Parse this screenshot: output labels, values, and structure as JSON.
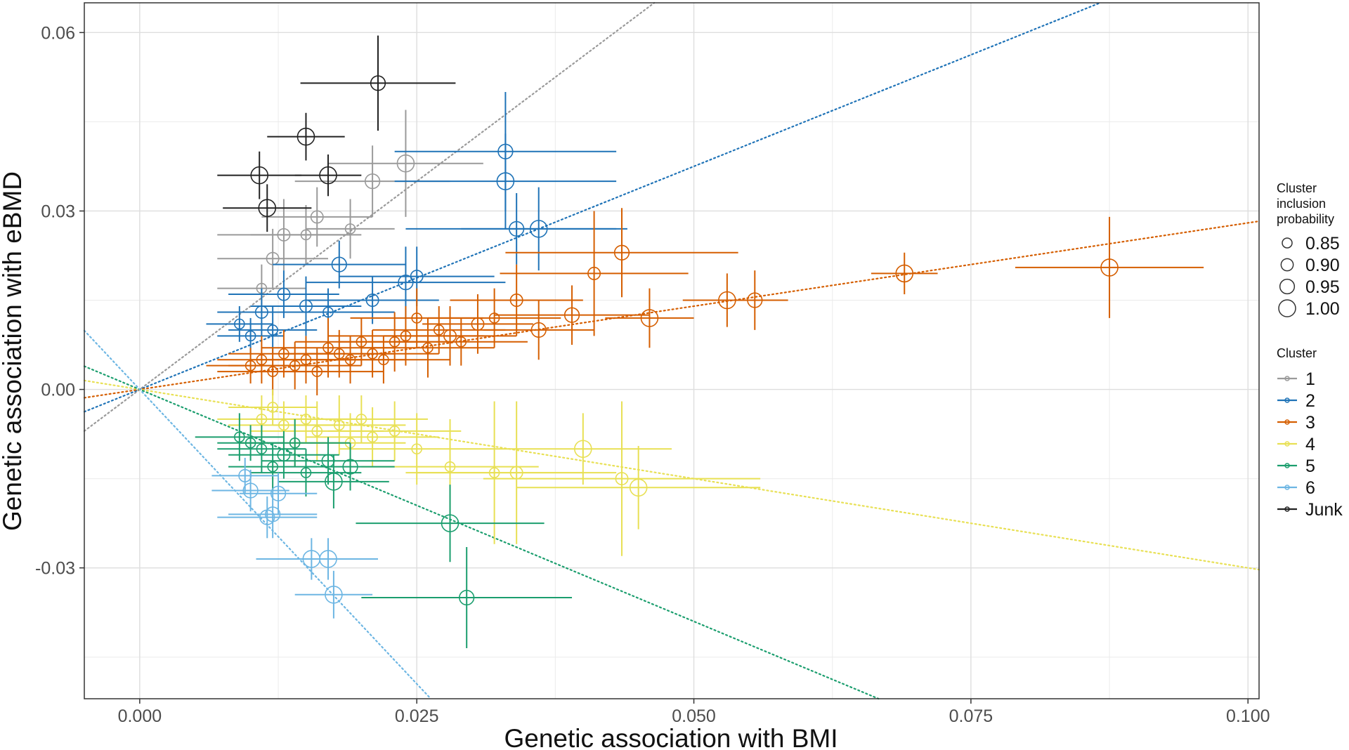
{
  "chart_data": {
    "type": "scatter",
    "title": "",
    "xlabel": "Genetic association with BMI",
    "ylabel": "Genetic association with eBMD",
    "xlim": [
      -0.005,
      0.101
    ],
    "ylim": [
      -0.052,
      0.065
    ],
    "x_ticks": [
      0.0,
      0.025,
      0.05,
      0.075,
      0.1
    ],
    "x_tick_labels": [
      "0.000",
      "0.025",
      "0.050",
      "0.075",
      "0.100"
    ],
    "y_ticks": [
      -0.03,
      0.0,
      0.03,
      0.06
    ],
    "y_tick_labels": [
      "-0.03",
      "0.00",
      "0.03",
      "0.06"
    ],
    "grid": true,
    "legend_placement": "right",
    "size_legend": {
      "title_lines": [
        "Cluster",
        "inclusion",
        "probability"
      ],
      "items": [
        {
          "label": "0.85",
          "value": 0.85
        },
        {
          "label": "0.90",
          "value": 0.9
        },
        {
          "label": "0.95",
          "value": 0.95
        },
        {
          "label": "1.00",
          "value": 1.0
        }
      ]
    },
    "cluster_legend": {
      "title": "Cluster",
      "items": [
        {
          "label": "1",
          "color": "#9a9a9a"
        },
        {
          "label": "2",
          "color": "#1f73b7"
        },
        {
          "label": "3",
          "color": "#d55e00"
        },
        {
          "label": "4",
          "color": "#e8e054"
        },
        {
          "label": "5",
          "color": "#1b9e6e"
        },
        {
          "label": "6",
          "color": "#6db6e3"
        },
        {
          "label": "Junk",
          "color": "#222222"
        }
      ]
    },
    "series": [
      {
        "name": "1",
        "color": "#9a9a9a",
        "slope": 1.4,
        "points": [
          {
            "x": 0.024,
            "y": 0.038,
            "xerr": 0.007,
            "yerr": 0.009,
            "p": 1.0
          },
          {
            "x": 0.021,
            "y": 0.035,
            "xerr": 0.007,
            "yerr": 0.006,
            "p": 0.95
          },
          {
            "x": 0.016,
            "y": 0.029,
            "xerr": 0.005,
            "yerr": 0.005,
            "p": 0.9
          },
          {
            "x": 0.013,
            "y": 0.026,
            "xerr": 0.006,
            "yerr": 0.006,
            "p": 0.9
          },
          {
            "x": 0.015,
            "y": 0.026,
            "xerr": 0.005,
            "yerr": 0.005,
            "p": 0.85
          },
          {
            "x": 0.012,
            "y": 0.022,
            "xerr": 0.005,
            "yerr": 0.005,
            "p": 0.9
          },
          {
            "x": 0.019,
            "y": 0.027,
            "xerr": 0.004,
            "yerr": 0.005,
            "p": 0.85
          },
          {
            "x": 0.011,
            "y": 0.017,
            "xerr": 0.004,
            "yerr": 0.004,
            "p": 0.85
          }
        ]
      },
      {
        "name": "2",
        "color": "#1f73b7",
        "slope": 0.75,
        "points": [
          {
            "x": 0.033,
            "y": 0.04,
            "xerr": 0.01,
            "yerr": 0.01,
            "p": 0.95
          },
          {
            "x": 0.033,
            "y": 0.035,
            "xerr": 0.01,
            "yerr": 0.008,
            "p": 1.0
          },
          {
            "x": 0.034,
            "y": 0.027,
            "xerr": 0.01,
            "yerr": 0.006,
            "p": 0.95
          },
          {
            "x": 0.036,
            "y": 0.027,
            "xerr": 0.007,
            "yerr": 0.007,
            "p": 1.0
          },
          {
            "x": 0.018,
            "y": 0.021,
            "xerr": 0.006,
            "yerr": 0.004,
            "p": 0.95
          },
          {
            "x": 0.024,
            "y": 0.018,
            "xerr": 0.009,
            "yerr": 0.006,
            "p": 0.95
          },
          {
            "x": 0.025,
            "y": 0.019,
            "xerr": 0.007,
            "yerr": 0.005,
            "p": 0.9
          },
          {
            "x": 0.013,
            "y": 0.016,
            "xerr": 0.005,
            "yerr": 0.004,
            "p": 0.9
          },
          {
            "x": 0.011,
            "y": 0.013,
            "xerr": 0.004,
            "yerr": 0.004,
            "p": 0.9
          },
          {
            "x": 0.015,
            "y": 0.014,
            "xerr": 0.005,
            "yerr": 0.005,
            "p": 0.9
          },
          {
            "x": 0.009,
            "y": 0.011,
            "xerr": 0.003,
            "yerr": 0.003,
            "p": 0.85
          },
          {
            "x": 0.017,
            "y": 0.013,
            "xerr": 0.006,
            "yerr": 0.004,
            "p": 0.85
          },
          {
            "x": 0.021,
            "y": 0.015,
            "xerr": 0.006,
            "yerr": 0.004,
            "p": 0.9
          },
          {
            "x": 0.012,
            "y": 0.01,
            "xerr": 0.004,
            "yerr": 0.004,
            "p": 0.85
          },
          {
            "x": 0.01,
            "y": 0.009,
            "xerr": 0.003,
            "yerr": 0.003,
            "p": 0.85
          }
        ]
      },
      {
        "name": "3",
        "color": "#d55e00",
        "slope": 0.28,
        "points": [
          {
            "x": 0.0875,
            "y": 0.0205,
            "xerr": 0.0085,
            "yerr": 0.0085,
            "p": 1.0
          },
          {
            "x": 0.069,
            "y": 0.0195,
            "xerr": 0.003,
            "yerr": 0.0035,
            "p": 1.0
          },
          {
            "x": 0.0555,
            "y": 0.015,
            "xerr": 0.003,
            "yerr": 0.005,
            "p": 0.95
          },
          {
            "x": 0.053,
            "y": 0.015,
            "xerr": 0.004,
            "yerr": 0.0045,
            "p": 1.0
          },
          {
            "x": 0.046,
            "y": 0.012,
            "xerr": 0.004,
            "yerr": 0.005,
            "p": 1.0
          },
          {
            "x": 0.0435,
            "y": 0.023,
            "xerr": 0.0105,
            "yerr": 0.0075,
            "p": 0.95
          },
          {
            "x": 0.041,
            "y": 0.0195,
            "xerr": 0.0085,
            "yerr": 0.0105,
            "p": 0.9
          },
          {
            "x": 0.039,
            "y": 0.0125,
            "xerr": 0.007,
            "yerr": 0.005,
            "p": 0.95
          },
          {
            "x": 0.036,
            "y": 0.01,
            "xerr": 0.005,
            "yerr": 0.005,
            "p": 0.95
          },
          {
            "x": 0.034,
            "y": 0.015,
            "xerr": 0.006,
            "yerr": 0.006,
            "p": 0.9
          },
          {
            "x": 0.0305,
            "y": 0.011,
            "xerr": 0.005,
            "yerr": 0.005,
            "p": 0.9
          },
          {
            "x": 0.028,
            "y": 0.009,
            "xerr": 0.006,
            "yerr": 0.005,
            "p": 0.9
          },
          {
            "x": 0.026,
            "y": 0.007,
            "xerr": 0.006,
            "yerr": 0.005,
            "p": 0.85
          },
          {
            "x": 0.023,
            "y": 0.008,
            "xerr": 0.005,
            "yerr": 0.005,
            "p": 0.85
          },
          {
            "x": 0.021,
            "y": 0.006,
            "xerr": 0.006,
            "yerr": 0.004,
            "p": 0.85
          },
          {
            "x": 0.019,
            "y": 0.005,
            "xerr": 0.005,
            "yerr": 0.004,
            "p": 0.85
          },
          {
            "x": 0.017,
            "y": 0.007,
            "xerr": 0.006,
            "yerr": 0.005,
            "p": 0.85
          },
          {
            "x": 0.015,
            "y": 0.005,
            "xerr": 0.005,
            "yerr": 0.004,
            "p": 0.85
          },
          {
            "x": 0.013,
            "y": 0.006,
            "xerr": 0.005,
            "yerr": 0.004,
            "p": 0.85
          },
          {
            "x": 0.011,
            "y": 0.005,
            "xerr": 0.004,
            "yerr": 0.004,
            "p": 0.85
          },
          {
            "x": 0.01,
            "y": 0.004,
            "xerr": 0.004,
            "yerr": 0.003,
            "p": 0.85
          },
          {
            "x": 0.012,
            "y": 0.003,
            "xerr": 0.005,
            "yerr": 0.004,
            "p": 0.85
          },
          {
            "x": 0.014,
            "y": 0.004,
            "xerr": 0.006,
            "yerr": 0.004,
            "p": 0.85
          },
          {
            "x": 0.016,
            "y": 0.003,
            "xerr": 0.006,
            "yerr": 0.004,
            "p": 0.85
          },
          {
            "x": 0.018,
            "y": 0.006,
            "xerr": 0.005,
            "yerr": 0.004,
            "p": 0.85
          },
          {
            "x": 0.02,
            "y": 0.008,
            "xerr": 0.006,
            "yerr": 0.004,
            "p": 0.85
          },
          {
            "x": 0.022,
            "y": 0.005,
            "xerr": 0.006,
            "yerr": 0.004,
            "p": 0.85
          },
          {
            "x": 0.024,
            "y": 0.009,
            "xerr": 0.007,
            "yerr": 0.005,
            "p": 0.85
          },
          {
            "x": 0.027,
            "y": 0.01,
            "xerr": 0.006,
            "yerr": 0.004,
            "p": 0.85
          },
          {
            "x": 0.029,
            "y": 0.008,
            "xerr": 0.006,
            "yerr": 0.004,
            "p": 0.85
          },
          {
            "x": 0.032,
            "y": 0.012,
            "xerr": 0.006,
            "yerr": 0.005,
            "p": 0.85
          },
          {
            "x": 0.025,
            "y": 0.012,
            "xerr": 0.006,
            "yerr": 0.005,
            "p": 0.85
          }
        ]
      },
      {
        "name": "4",
        "color": "#e8e054",
        "slope": -0.3,
        "points": [
          {
            "x": 0.045,
            "y": -0.0165,
            "xerr": 0.011,
            "yerr": 0.007,
            "p": 1.0
          },
          {
            "x": 0.04,
            "y": -0.01,
            "xerr": 0.008,
            "yerr": 0.006,
            "p": 1.0
          },
          {
            "x": 0.0435,
            "y": -0.015,
            "xerr": 0.0125,
            "yerr": 0.013,
            "p": 0.9
          },
          {
            "x": 0.034,
            "y": -0.014,
            "xerr": 0.009,
            "yerr": 0.012,
            "p": 0.9
          },
          {
            "x": 0.032,
            "y": -0.014,
            "xerr": 0.008,
            "yerr": 0.012,
            "p": 0.85
          },
          {
            "x": 0.028,
            "y": -0.013,
            "xerr": 0.008,
            "yerr": 0.008,
            "p": 0.85
          },
          {
            "x": 0.025,
            "y": -0.01,
            "xerr": 0.007,
            "yerr": 0.006,
            "p": 0.85
          },
          {
            "x": 0.021,
            "y": -0.008,
            "xerr": 0.006,
            "yerr": 0.005,
            "p": 0.85
          },
          {
            "x": 0.018,
            "y": -0.006,
            "xerr": 0.006,
            "yerr": 0.005,
            "p": 0.85
          },
          {
            "x": 0.015,
            "y": -0.005,
            "xerr": 0.005,
            "yerr": 0.004,
            "p": 0.85
          },
          {
            "x": 0.013,
            "y": -0.006,
            "xerr": 0.005,
            "yerr": 0.004,
            "p": 0.85
          },
          {
            "x": 0.011,
            "y": -0.005,
            "xerr": 0.004,
            "yerr": 0.004,
            "p": 0.85
          },
          {
            "x": 0.016,
            "y": -0.007,
            "xerr": 0.006,
            "yerr": 0.005,
            "p": 0.85
          },
          {
            "x": 0.02,
            "y": -0.005,
            "xerr": 0.006,
            "yerr": 0.004,
            "p": 0.85
          },
          {
            "x": 0.023,
            "y": -0.007,
            "xerr": 0.006,
            "yerr": 0.005,
            "p": 0.85
          },
          {
            "x": 0.014,
            "y": -0.009,
            "xerr": 0.005,
            "yerr": 0.004,
            "p": 0.85
          },
          {
            "x": 0.019,
            "y": -0.009,
            "xerr": 0.005,
            "yerr": 0.005,
            "p": 0.85
          },
          {
            "x": 0.012,
            "y": -0.003,
            "xerr": 0.004,
            "yerr": 0.003,
            "p": 0.85
          }
        ]
      },
      {
        "name": "5",
        "color": "#1b9e6e",
        "slope": -0.78,
        "points": [
          {
            "x": 0.0295,
            "y": -0.035,
            "xerr": 0.0095,
            "yerr": 0.0085,
            "p": 0.95
          },
          {
            "x": 0.028,
            "y": -0.0225,
            "xerr": 0.0085,
            "yerr": 0.0065,
            "p": 1.0
          },
          {
            "x": 0.0175,
            "y": -0.0155,
            "xerr": 0.005,
            "yerr": 0.0045,
            "p": 1.0
          },
          {
            "x": 0.019,
            "y": -0.013,
            "xerr": 0.004,
            "yerr": 0.004,
            "p": 0.95
          },
          {
            "x": 0.017,
            "y": -0.012,
            "xerr": 0.006,
            "yerr": 0.004,
            "p": 0.9
          },
          {
            "x": 0.013,
            "y": -0.011,
            "xerr": 0.005,
            "yerr": 0.004,
            "p": 0.9
          },
          {
            "x": 0.011,
            "y": -0.01,
            "xerr": 0.004,
            "yerr": 0.004,
            "p": 0.85
          },
          {
            "x": 0.012,
            "y": -0.013,
            "xerr": 0.004,
            "yerr": 0.004,
            "p": 0.85
          },
          {
            "x": 0.01,
            "y": -0.009,
            "xerr": 0.003,
            "yerr": 0.003,
            "p": 0.85
          },
          {
            "x": 0.009,
            "y": -0.008,
            "xerr": 0.004,
            "yerr": 0.004,
            "p": 0.85
          },
          {
            "x": 0.014,
            "y": -0.009,
            "xerr": 0.005,
            "yerr": 0.004,
            "p": 0.85
          },
          {
            "x": 0.015,
            "y": -0.014,
            "xerr": 0.005,
            "yerr": 0.004,
            "p": 0.85
          }
        ]
      },
      {
        "name": "6",
        "color": "#6db6e3",
        "slope": -1.98,
        "points": [
          {
            "x": 0.0175,
            "y": -0.0345,
            "xerr": 0.0035,
            "yerr": 0.004,
            "p": 1.0
          },
          {
            "x": 0.0155,
            "y": -0.0285,
            "xerr": 0.005,
            "yerr": 0.0035,
            "p": 1.0
          },
          {
            "x": 0.017,
            "y": -0.0285,
            "xerr": 0.0045,
            "yerr": 0.0035,
            "p": 1.0
          },
          {
            "x": 0.0115,
            "y": -0.0215,
            "xerr": 0.0045,
            "yerr": 0.0035,
            "p": 0.95
          },
          {
            "x": 0.012,
            "y": -0.021,
            "xerr": 0.004,
            "yerr": 0.004,
            "p": 0.95
          },
          {
            "x": 0.01,
            "y": -0.017,
            "xerr": 0.0035,
            "yerr": 0.0035,
            "p": 0.95
          },
          {
            "x": 0.0125,
            "y": -0.0175,
            "xerr": 0.0035,
            "yerr": 0.0035,
            "p": 0.95
          },
          {
            "x": 0.0095,
            "y": -0.0145,
            "xerr": 0.003,
            "yerr": 0.003,
            "p": 0.9
          }
        ]
      },
      {
        "name": "Junk",
        "color": "#222222",
        "slope": null,
        "points": [
          {
            "x": 0.0215,
            "y": 0.0515,
            "xerr": 0.007,
            "yerr": 0.008,
            "p": 0.95
          },
          {
            "x": 0.015,
            "y": 0.0425,
            "xerr": 0.0035,
            "yerr": 0.004,
            "p": 1.0
          },
          {
            "x": 0.017,
            "y": 0.036,
            "xerr": 0.003,
            "yerr": 0.0035,
            "p": 1.0
          },
          {
            "x": 0.0108,
            "y": 0.036,
            "xerr": 0.0038,
            "yerr": 0.004,
            "p": 1.0
          },
          {
            "x": 0.0115,
            "y": 0.0305,
            "xerr": 0.004,
            "yerr": 0.004,
            "p": 1.0
          }
        ]
      }
    ]
  }
}
